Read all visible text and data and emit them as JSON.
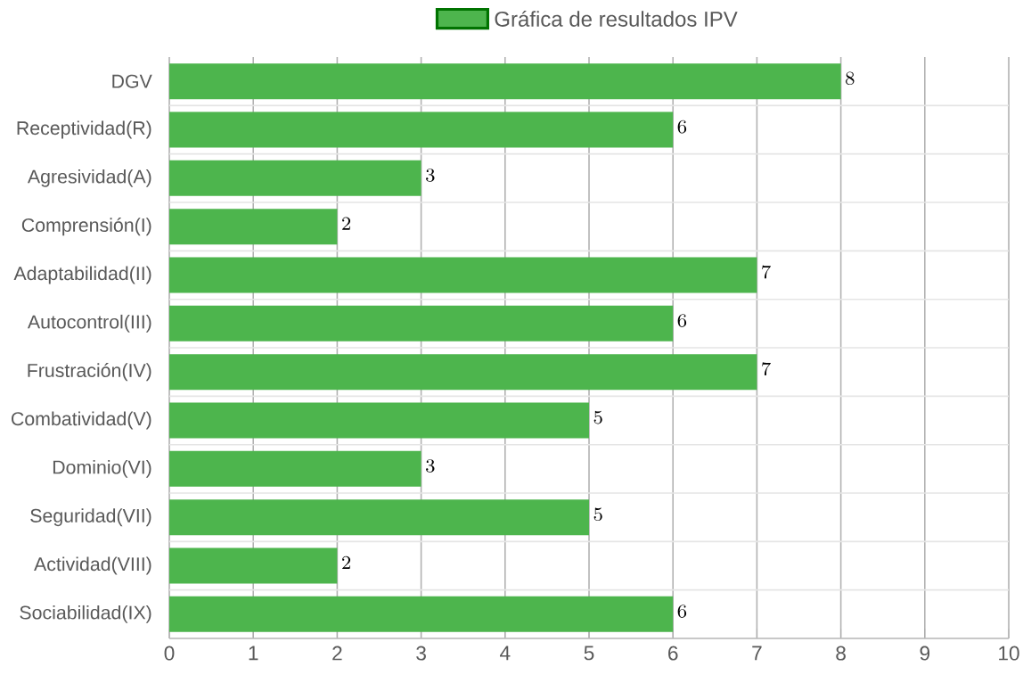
{
  "chart_data": {
    "type": "bar",
    "orientation": "horizontal",
    "categories": [
      "DGV",
      "Receptividad(R)",
      "Agresividad(A)",
      "Comprensión(I)",
      "Adaptabilidad(II)",
      "Autocontrol(III)",
      "Frustración(IV)",
      "Combatividad(V)",
      "Dominio(VI)",
      "Seguridad(VII)",
      "Actividad(VIII)",
      "Sociabilidad(IX)"
    ],
    "series": [
      {
        "name": "Gráfica de resultados IPV",
        "color": "#4db54d",
        "values": [
          8,
          6,
          3,
          2,
          7,
          6,
          7,
          5,
          3,
          5,
          2,
          6
        ]
      }
    ],
    "xlim": [
      0,
      10
    ],
    "xticks": [
      0,
      1,
      2,
      3,
      4,
      5,
      6,
      7,
      8,
      9,
      10
    ],
    "grid": true,
    "legend": "top",
    "data_labels": true
  }
}
